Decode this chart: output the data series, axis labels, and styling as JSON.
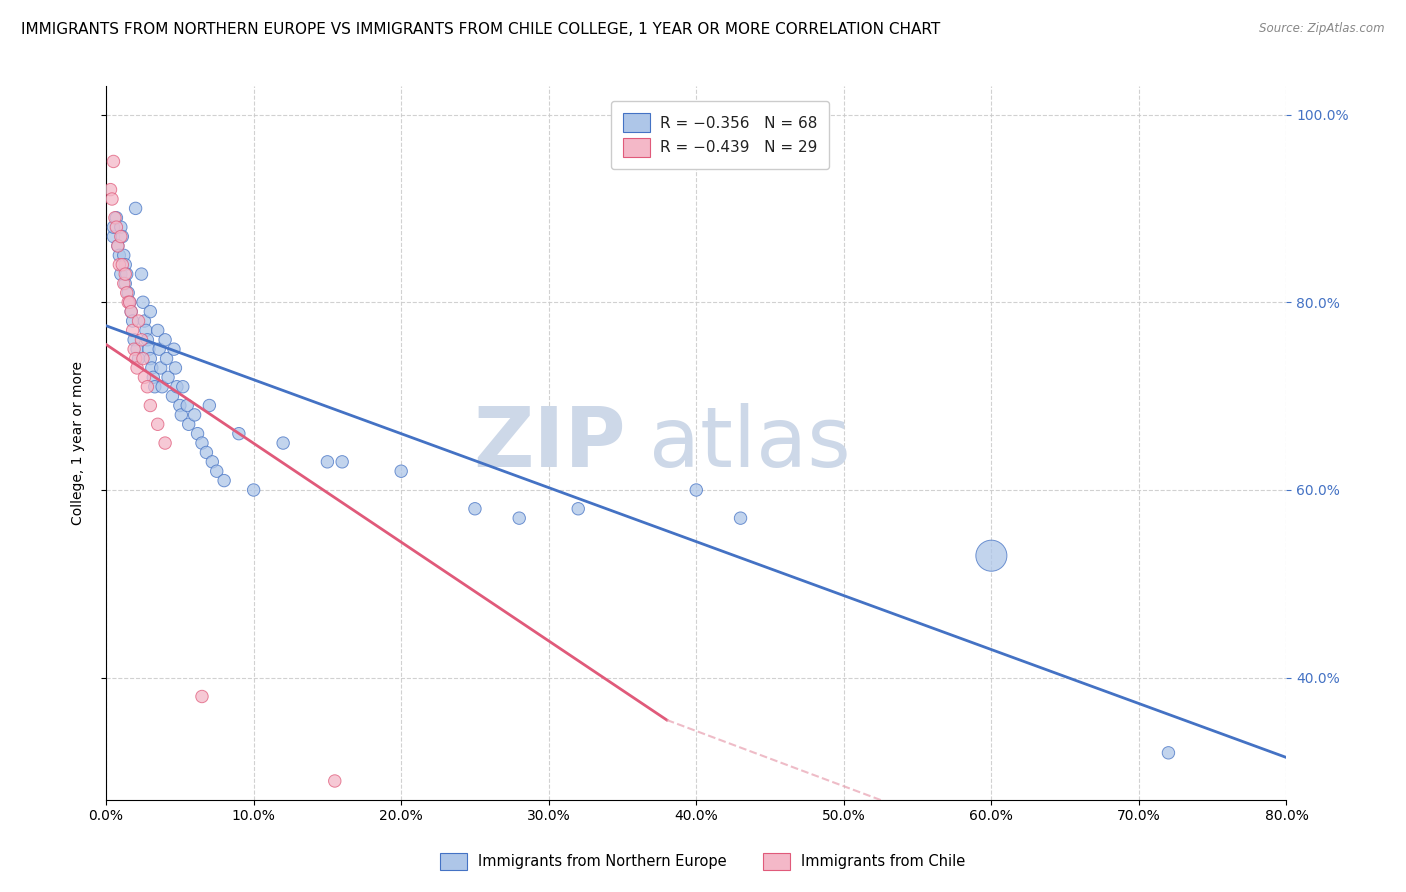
{
  "title": "IMMIGRANTS FROM NORTHERN EUROPE VS IMMIGRANTS FROM CHILE COLLEGE, 1 YEAR OR MORE CORRELATION CHART",
  "source": "Source: ZipAtlas.com",
  "ylabel": "College, 1 year or more",
  "legend_blue_r": "R = −0.356",
  "legend_blue_n": "N = 68",
  "legend_pink_r": "R = −0.439",
  "legend_pink_n": "N = 29",
  "legend_blue_label": "Immigrants from Northern Europe",
  "legend_pink_label": "Immigrants from Chile",
  "blue_color": "#aec6e8",
  "pink_color": "#f4b8c8",
  "line_blue": "#4472c4",
  "line_pink": "#e05a7a",
  "line_pink_dash": "#e8a0b0",
  "watermark_zip": "ZIP",
  "watermark_atlas": "atlas",
  "xlim": [
    0.0,
    0.8
  ],
  "ylim": [
    0.27,
    1.03
  ],
  "blue_scatter": [
    [
      0.005,
      0.87
    ],
    [
      0.005,
      0.88
    ],
    [
      0.007,
      0.89
    ],
    [
      0.008,
      0.86
    ],
    [
      0.009,
      0.85
    ],
    [
      0.01,
      0.88
    ],
    [
      0.01,
      0.83
    ],
    [
      0.011,
      0.87
    ],
    [
      0.012,
      0.85
    ],
    [
      0.013,
      0.84
    ],
    [
      0.013,
      0.82
    ],
    [
      0.014,
      0.83
    ],
    [
      0.015,
      0.81
    ],
    [
      0.016,
      0.8
    ],
    [
      0.017,
      0.79
    ],
    [
      0.018,
      0.78
    ],
    [
      0.019,
      0.76
    ],
    [
      0.02,
      0.9
    ],
    [
      0.021,
      0.75
    ],
    [
      0.022,
      0.74
    ],
    [
      0.024,
      0.83
    ],
    [
      0.025,
      0.8
    ],
    [
      0.026,
      0.78
    ],
    [
      0.027,
      0.77
    ],
    [
      0.028,
      0.76
    ],
    [
      0.029,
      0.75
    ],
    [
      0.03,
      0.79
    ],
    [
      0.03,
      0.74
    ],
    [
      0.031,
      0.73
    ],
    [
      0.032,
      0.72
    ],
    [
      0.033,
      0.71
    ],
    [
      0.035,
      0.77
    ],
    [
      0.036,
      0.75
    ],
    [
      0.037,
      0.73
    ],
    [
      0.038,
      0.71
    ],
    [
      0.04,
      0.76
    ],
    [
      0.041,
      0.74
    ],
    [
      0.042,
      0.72
    ],
    [
      0.045,
      0.7
    ],
    [
      0.046,
      0.75
    ],
    [
      0.047,
      0.73
    ],
    [
      0.048,
      0.71
    ],
    [
      0.05,
      0.69
    ],
    [
      0.051,
      0.68
    ],
    [
      0.052,
      0.71
    ],
    [
      0.055,
      0.69
    ],
    [
      0.056,
      0.67
    ],
    [
      0.06,
      0.68
    ],
    [
      0.062,
      0.66
    ],
    [
      0.065,
      0.65
    ],
    [
      0.068,
      0.64
    ],
    [
      0.07,
      0.69
    ],
    [
      0.072,
      0.63
    ],
    [
      0.075,
      0.62
    ],
    [
      0.08,
      0.61
    ],
    [
      0.09,
      0.66
    ],
    [
      0.1,
      0.6
    ],
    [
      0.12,
      0.65
    ],
    [
      0.15,
      0.63
    ],
    [
      0.16,
      0.63
    ],
    [
      0.2,
      0.62
    ],
    [
      0.25,
      0.58
    ],
    [
      0.28,
      0.57
    ],
    [
      0.32,
      0.58
    ],
    [
      0.4,
      0.6
    ],
    [
      0.43,
      0.57
    ],
    [
      0.6,
      0.53
    ],
    [
      0.72,
      0.32
    ]
  ],
  "blue_sizes": [
    80,
    80,
    80,
    80,
    80,
    80,
    80,
    80,
    80,
    80,
    80,
    80,
    80,
    80,
    80,
    80,
    80,
    80,
    80,
    80,
    80,
    80,
    80,
    80,
    80,
    80,
    80,
    80,
    80,
    80,
    80,
    80,
    80,
    80,
    80,
    80,
    80,
    80,
    80,
    80,
    80,
    80,
    80,
    80,
    80,
    80,
    80,
    80,
    80,
    80,
    80,
    80,
    80,
    80,
    80,
    80,
    80,
    80,
    80,
    80,
    80,
    80,
    80,
    80,
    80,
    80,
    500,
    80
  ],
  "pink_scatter": [
    [
      0.003,
      0.92
    ],
    [
      0.004,
      0.91
    ],
    [
      0.005,
      0.95
    ],
    [
      0.006,
      0.89
    ],
    [
      0.007,
      0.88
    ],
    [
      0.008,
      0.86
    ],
    [
      0.009,
      0.84
    ],
    [
      0.01,
      0.87
    ],
    [
      0.011,
      0.84
    ],
    [
      0.012,
      0.82
    ],
    [
      0.013,
      0.83
    ],
    [
      0.014,
      0.81
    ],
    [
      0.015,
      0.8
    ],
    [
      0.016,
      0.8
    ],
    [
      0.017,
      0.79
    ],
    [
      0.018,
      0.77
    ],
    [
      0.019,
      0.75
    ],
    [
      0.02,
      0.74
    ],
    [
      0.021,
      0.73
    ],
    [
      0.022,
      0.78
    ],
    [
      0.024,
      0.76
    ],
    [
      0.025,
      0.74
    ],
    [
      0.026,
      0.72
    ],
    [
      0.028,
      0.71
    ],
    [
      0.03,
      0.69
    ],
    [
      0.035,
      0.67
    ],
    [
      0.04,
      0.65
    ],
    [
      0.065,
      0.38
    ],
    [
      0.155,
      0.29
    ]
  ],
  "pink_sizes": [
    80,
    80,
    80,
    80,
    80,
    80,
    80,
    80,
    80,
    80,
    80,
    80,
    80,
    80,
    80,
    80,
    80,
    80,
    80,
    80,
    80,
    80,
    80,
    80,
    80,
    80,
    80,
    80,
    80
  ],
  "blue_trendline": [
    [
      0.0,
      0.775
    ],
    [
      0.8,
      0.315
    ]
  ],
  "pink_trendline_solid": [
    [
      0.0,
      0.755
    ],
    [
      0.38,
      0.355
    ]
  ],
  "pink_trendline_dash": [
    [
      0.38,
      0.355
    ],
    [
      0.55,
      0.255
    ]
  ],
  "grid_color": "#cccccc",
  "bg_color": "#ffffff",
  "title_fontsize": 11,
  "axis_fontsize": 10,
  "watermark_color": "#cdd8e8",
  "watermark_fontsize_zip": 60,
  "watermark_fontsize_atlas": 60
}
